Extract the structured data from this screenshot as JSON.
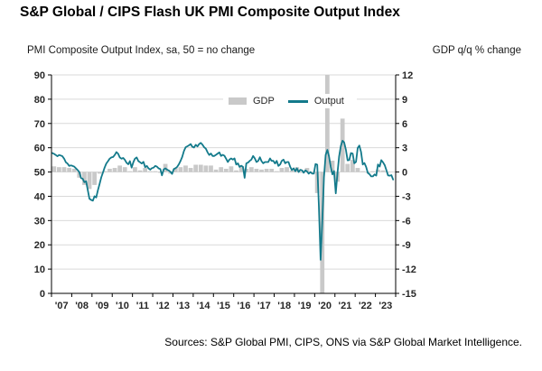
{
  "title": "S&P Global / CIPS Flash UK PMI Composite Output Index",
  "left_axis_caption": "PMI Composite Output Index, sa, 50 = no change",
  "right_axis_caption": "GDP q/q % change",
  "source_note": "Sources: S&P Global PMI, CIPS, ONS via S&P Global Market Intelligence.",
  "legend": {
    "gdp_label": "GDP",
    "output_label": "Output"
  },
  "colors": {
    "output_line": "#137a8b",
    "gdp_bar": "#c9c9c9",
    "grid": "#d9d9d9",
    "axis": "#000000",
    "text": "#262626"
  },
  "chart_data": {
    "type": "line+bar",
    "title": "S&P Global / CIPS Flash UK PMI Composite Output Index",
    "left_axis": {
      "label": "PMI Composite Output Index, sa, 50 = no change",
      "min": 0,
      "max": 90,
      "ticks": [
        0,
        10,
        20,
        30,
        40,
        50,
        60,
        70,
        80,
        90
      ]
    },
    "right_axis": {
      "label": "GDP q/q % change",
      "min": -15,
      "max": 12,
      "ticks": [
        -15,
        -12,
        -9,
        -6,
        -3,
        0,
        3,
        6,
        9,
        12
      ]
    },
    "x_axis": {
      "domain_start": 2007,
      "domain_end": 2024,
      "tick_labels": [
        "'07",
        "'08",
        "'09",
        "'10",
        "'11",
        "'12",
        "'13",
        "'14",
        "'15",
        "'16",
        "'17",
        "'18",
        "'19",
        "'20",
        "'21",
        "'22",
        "'23"
      ]
    },
    "grid": "horizontal",
    "legend_position": "inside-top-center",
    "series": [
      {
        "name": "Output",
        "type": "line",
        "axis": "left",
        "frequency": "monthly",
        "start": "2007-01",
        "values": [
          57.8,
          57.5,
          57.0,
          56.5,
          57.0,
          56.8,
          56.5,
          55.5,
          54.0,
          53.5,
          52.5,
          52.7,
          52.5,
          52.2,
          51.5,
          50.8,
          50.0,
          47.5,
          47.2,
          45.8,
          46.2,
          42.5,
          39.0,
          38.5,
          38.2,
          40.0,
          39.5,
          42.5,
          45.0,
          47.8,
          49.8,
          51.8,
          53.5,
          54.5,
          55.5,
          56.0,
          56.2,
          57.0,
          58.2,
          57.5,
          56.0,
          55.5,
          55.8,
          55.0,
          53.8,
          53.2,
          54.5,
          51.8,
          54.0,
          55.5,
          56.0,
          54.5,
          54.0,
          53.5,
          54.2,
          52.0,
          52.5,
          51.5,
          51.0,
          51.6,
          51.8,
          52.5,
          52.2,
          51.5,
          51.2,
          48.6,
          51.1,
          51.5,
          51.0,
          50.6,
          50.1,
          49.2,
          51.2,
          51.6,
          52.1,
          53.2,
          54.6,
          56.2,
          58.6,
          60.2,
          60.6,
          61.0,
          61.5,
          60.4,
          60.1,
          61.2,
          60.5,
          61.5,
          62.0,
          61.2,
          60.2,
          59.6,
          58.1,
          57.0,
          57.6,
          56.6,
          56.6,
          57.1,
          57.6,
          58.1,
          56.6,
          57.1,
          56.7,
          55.5,
          54.1,
          55.1,
          55.6,
          55.1,
          55.6,
          53.1,
          53.6,
          52.1,
          52.6,
          52.1,
          47.6,
          53.6,
          53.9,
          54.6,
          55.1,
          56.6,
          55.6,
          54.1,
          54.6,
          56.1,
          54.5,
          53.6,
          54.1,
          54.1,
          54.1,
          55.6,
          54.6,
          54.6,
          53.5,
          54.6,
          52.5,
          53.1,
          54.6,
          55.1,
          53.6,
          54.1,
          54.1,
          52.1,
          50.8,
          51.5,
          50.3,
          51.5,
          50.0,
          50.9,
          50.7,
          49.7,
          50.7,
          50.2,
          49.3,
          50.0,
          49.3,
          49.3,
          53.3,
          53.0,
          36.0,
          13.8,
          30.0,
          47.7,
          57.0,
          59.1,
          56.5,
          52.1,
          49.0,
          50.4,
          41.2,
          49.6,
          56.4,
          60.7,
          62.9,
          62.2,
          59.2,
          54.8,
          54.9,
          57.8,
          57.6,
          53.6,
          54.2,
          59.9,
          60.9,
          58.2,
          53.1,
          53.7,
          52.1,
          49.6,
          49.1,
          48.2,
          48.2,
          49.0,
          48.5,
          53.1,
          52.2,
          54.9,
          54.0,
          52.8,
          50.8,
          48.6,
          48.5,
          48.7,
          46.9
        ]
      },
      {
        "name": "GDP",
        "type": "bar",
        "axis": "right",
        "frequency": "quarterly",
        "start": "2007-Q1",
        "values": [
          0.7,
          0.6,
          0.6,
          0.5,
          0.4,
          -0.7,
          -1.6,
          -2.1,
          -1.6,
          -0.2,
          0.1,
          0.4,
          0.5,
          0.8,
          0.6,
          0.1,
          0.6,
          0.2,
          0.5,
          0.1,
          0.1,
          -0.1,
          1.0,
          -0.2,
          0.5,
          0.6,
          0.8,
          0.5,
          0.9,
          0.9,
          0.8,
          0.8,
          0.3,
          0.6,
          0.4,
          0.7,
          0.2,
          0.6,
          0.4,
          0.6,
          0.4,
          0.3,
          0.4,
          0.4,
          0.1,
          0.5,
          0.6,
          0.2,
          0.6,
          -0.1,
          0.5,
          0.0,
          -2.6,
          -19.4,
          16.6,
          1.4,
          -1.2,
          6.6,
          1.0,
          1.5,
          0.5,
          0.1,
          -0.1,
          0.1,
          0.3,
          0.2,
          0.0
        ]
      }
    ]
  }
}
